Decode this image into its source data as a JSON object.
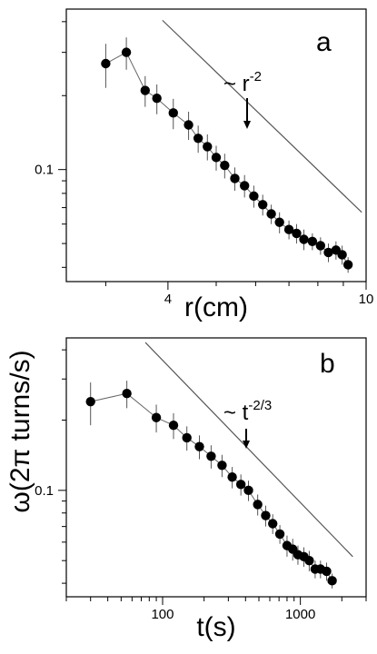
{
  "ylabel": "ω(2π turns/s)",
  "chart_data": [
    {
      "type": "scatter",
      "panel_label": "a",
      "xlabel": "r(cm)",
      "xscale": "log",
      "yscale": "log",
      "xlim": [
        2.5,
        10
      ],
      "ylim": [
        0.035,
        0.45
      ],
      "xticks": [
        {
          "value": 4,
          "label": "4"
        },
        {
          "value": 10,
          "label": "10"
        }
      ],
      "yticks": [
        {
          "value": 0.1,
          "label": "0.1"
        }
      ],
      "grid": false,
      "annotation": {
        "prefix": "~",
        "base": "r",
        "exponent": "-2"
      },
      "reference_line": {
        "x": [
          3.9,
          9.8
        ],
        "y": [
          0.405,
          0.067
        ]
      },
      "series": [
        {
          "x": [
            3.0,
            3.3,
            3.6,
            3.8,
            4.1,
            4.4,
            4.6,
            4.8,
            5.0,
            5.2,
            5.45,
            5.7,
            5.95,
            6.2,
            6.45,
            6.7,
            7.0,
            7.25,
            7.5,
            7.8,
            8.1,
            8.4,
            8.7,
            8.95,
            9.2
          ],
          "y": [
            0.27,
            0.3,
            0.21,
            0.195,
            0.17,
            0.152,
            0.134,
            0.124,
            0.112,
            0.104,
            0.092,
            0.086,
            0.078,
            0.072,
            0.066,
            0.061,
            0.057,
            0.055,
            0.052,
            0.051,
            0.049,
            0.046,
            0.047,
            0.045,
            0.041
          ],
          "err": [
            0.055,
            0.045,
            0.03,
            0.027,
            0.024,
            0.02,
            0.017,
            0.015,
            0.013,
            0.012,
            0.01,
            0.009,
            0.008,
            0.007,
            0.006,
            0.006,
            0.005,
            0.005,
            0.005,
            0.004,
            0.004,
            0.004,
            0.004,
            0.004,
            0.003
          ]
        }
      ]
    },
    {
      "type": "scatter",
      "panel_label": "b",
      "xlabel": "t(s)",
      "xscale": "log",
      "yscale": "log",
      "xlim": [
        20,
        3000
      ],
      "ylim": [
        0.035,
        0.45
      ],
      "xticks": [
        {
          "value": 100,
          "label": "100"
        },
        {
          "value": 1000,
          "label": "1000"
        }
      ],
      "yticks": [
        {
          "value": 0.1,
          "label": "0.1"
        }
      ],
      "grid": false,
      "annotation": {
        "prefix": "~",
        "base": "t",
        "exponent": "-2/3"
      },
      "reference_line": {
        "x": [
          75,
          2400
        ],
        "y": [
          0.43,
          0.052
        ]
      },
      "series": [
        {
          "x": [
            30,
            55,
            90,
            120,
            150,
            185,
            225,
            270,
            320,
            370,
            420,
            490,
            560,
            630,
            710,
            800,
            880,
            960,
            1060,
            1160,
            1280,
            1400,
            1550,
            1700
          ],
          "y": [
            0.24,
            0.26,
            0.205,
            0.19,
            0.168,
            0.154,
            0.14,
            0.128,
            0.114,
            0.106,
            0.1,
            0.087,
            0.078,
            0.072,
            0.065,
            0.058,
            0.056,
            0.053,
            0.052,
            0.05,
            0.046,
            0.046,
            0.045,
            0.041
          ],
          "err": [
            0.05,
            0.035,
            0.028,
            0.024,
            0.02,
            0.018,
            0.016,
            0.014,
            0.012,
            0.011,
            0.01,
            0.009,
            0.008,
            0.007,
            0.006,
            0.006,
            0.006,
            0.005,
            0.005,
            0.005,
            0.004,
            0.004,
            0.004,
            0.003
          ]
        }
      ]
    }
  ]
}
